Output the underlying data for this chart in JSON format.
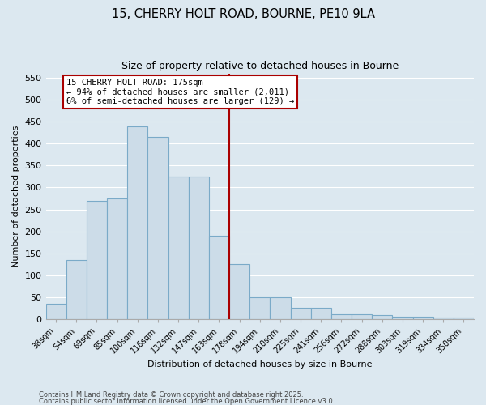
{
  "title": "15, CHERRY HOLT ROAD, BOURNE, PE10 9LA",
  "subtitle": "Size of property relative to detached houses in Bourne",
  "xlabel": "Distribution of detached houses by size in Bourne",
  "ylabel": "Number of detached properties",
  "bar_color": "#ccdce8",
  "bar_edge_color": "#7aaac8",
  "categories": [
    "38sqm",
    "54sqm",
    "69sqm",
    "85sqm",
    "100sqm",
    "116sqm",
    "132sqm",
    "147sqm",
    "163sqm",
    "178sqm",
    "194sqm",
    "210sqm",
    "225sqm",
    "241sqm",
    "256sqm",
    "272sqm",
    "288sqm",
    "303sqm",
    "319sqm",
    "334sqm",
    "350sqm"
  ],
  "values": [
    35,
    135,
    270,
    275,
    440,
    415,
    325,
    325,
    190,
    125,
    50,
    50,
    25,
    25,
    12,
    12,
    10,
    5,
    5,
    3,
    3
  ],
  "vline_position": 8.5,
  "vline_color": "#aa0000",
  "annotation_text": "15 CHERRY HOLT ROAD: 175sqm\n← 94% of detached houses are smaller (2,011)\n6% of semi-detached houses are larger (129) →",
  "annotation_box_facecolor": "#ffffff",
  "annotation_box_edgecolor": "#aa0000",
  "ylim": [
    0,
    560
  ],
  "yticks": [
    0,
    50,
    100,
    150,
    200,
    250,
    300,
    350,
    400,
    450,
    500,
    550
  ],
  "grid_color": "#ffffff",
  "background_color": "#dce8f0",
  "footer1": "Contains HM Land Registry data © Crown copyright and database right 2025.",
  "footer2": "Contains public sector information licensed under the Open Government Licence v3.0."
}
